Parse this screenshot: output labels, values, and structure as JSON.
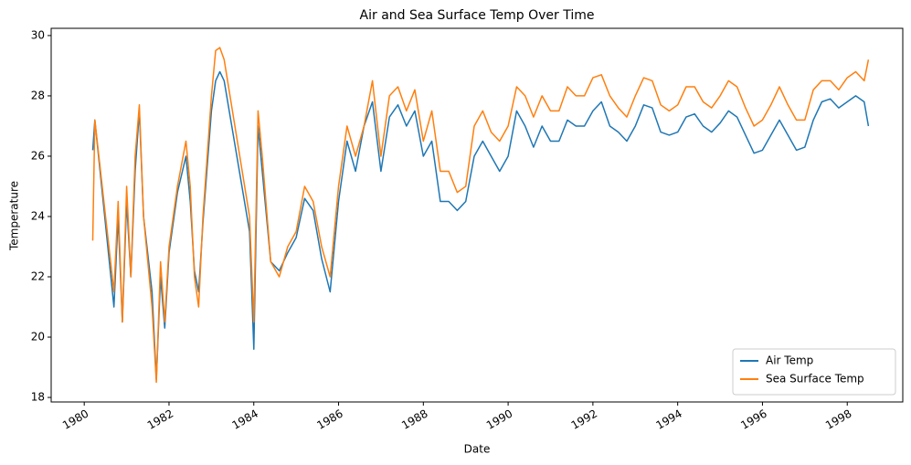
{
  "chart_data": {
    "type": "line",
    "title": "Air and Sea Surface Temp Over Time",
    "x_label": "Date",
    "y_label": "Temperature",
    "x": [
      1980.2,
      1980.25,
      1980.7,
      1980.8,
      1980.9,
      1981.0,
      1981.1,
      1981.2,
      1981.3,
      1981.4,
      1981.6,
      1981.7,
      1981.8,
      1981.9,
      1982.0,
      1982.2,
      1982.4,
      1982.5,
      1982.6,
      1982.7,
      1982.8,
      1983.0,
      1983.1,
      1983.2,
      1983.3,
      1983.9,
      1984.0,
      1984.1,
      1984.2,
      1984.4,
      1984.6,
      1984.8,
      1985.0,
      1985.2,
      1985.4,
      1985.6,
      1985.8,
      1985.9,
      1986.0,
      1986.2,
      1986.4,
      1986.6,
      1986.8,
      1987.0,
      1987.2,
      1987.4,
      1987.6,
      1987.8,
      1988.0,
      1988.2,
      1988.4,
      1988.6,
      1988.8,
      1989.0,
      1989.2,
      1989.4,
      1989.6,
      1989.8,
      1990.0,
      1990.2,
      1990.4,
      1990.6,
      1990.8,
      1991.0,
      1991.2,
      1991.4,
      1991.6,
      1991.8,
      1992.0,
      1992.2,
      1992.4,
      1992.6,
      1992.8,
      1993.0,
      1993.2,
      1993.4,
      1993.6,
      1993.8,
      1994.0,
      1994.2,
      1994.4,
      1994.6,
      1994.8,
      1995.0,
      1995.2,
      1995.4,
      1995.6,
      1995.8,
      1996.0,
      1996.2,
      1996.4,
      1996.6,
      1996.8,
      1997.0,
      1997.2,
      1997.4,
      1997.6,
      1997.8,
      1998.0,
      1998.2,
      1998.4,
      1998.5
    ],
    "series": [
      {
        "name": "Air Temp",
        "color": "#1f77b4",
        "values": [
          26.2,
          27.2,
          21,
          24,
          20.5,
          24.5,
          22,
          25.5,
          27.5,
          24,
          21.5,
          18.6,
          22,
          20.3,
          22.8,
          24.8,
          26,
          24.5,
          22.2,
          21.5,
          23.8,
          27.5,
          28.5,
          28.8,
          28.5,
          23.5,
          19.6,
          27,
          25.5,
          22.5,
          22.2,
          22.8,
          23.3,
          24.6,
          24.2,
          22.6,
          21.5,
          23,
          24.5,
          26.5,
          25.5,
          27,
          27.8,
          25.5,
          27.3,
          27.7,
          27,
          27.5,
          26,
          26.5,
          24.5,
          24.5,
          24.2,
          24.5,
          26,
          26.5,
          26,
          25.5,
          26,
          27.5,
          27,
          26.3,
          27,
          26.5,
          26.5,
          27.2,
          27,
          27,
          27.5,
          27.8,
          27,
          26.8,
          26.5,
          27,
          27.7,
          27.6,
          26.8,
          26.7,
          26.8,
          27.3,
          27.4,
          27,
          26.8,
          27.1,
          27.5,
          27.3,
          26.7,
          26.1,
          26.2,
          26.7,
          27.2,
          26.7,
          26.2,
          26.3,
          27.2,
          27.8,
          27.9,
          27.6,
          27.8,
          28,
          27.8,
          27.0
        ]
      },
      {
        "name": "Sea Surface Temp",
        "color": "#ff7f0e",
        "values": [
          23.2,
          27.2,
          21.5,
          24.5,
          20.5,
          25,
          22,
          26,
          27.7,
          24,
          21,
          18.5,
          22.5,
          20.5,
          23,
          25,
          26.5,
          25,
          22,
          21,
          24,
          28,
          29.5,
          29.6,
          29.2,
          24,
          20.5,
          27.5,
          26,
          22.5,
          22,
          23,
          23.5,
          25,
          24.5,
          23,
          22,
          23.5,
          25,
          27,
          26,
          27,
          28.5,
          26,
          28,
          28.3,
          27.5,
          28.2,
          26.5,
          27.5,
          25.5,
          25.5,
          24.8,
          25,
          27,
          27.5,
          26.8,
          26.5,
          27,
          28.3,
          28,
          27.3,
          28,
          27.5,
          27.5,
          28.3,
          28,
          28,
          28.6,
          28.7,
          28,
          27.6,
          27.3,
          28,
          28.6,
          28.5,
          27.7,
          27.5,
          27.7,
          28.3,
          28.3,
          27.8,
          27.6,
          28,
          28.5,
          28.3,
          27.6,
          27.0,
          27.2,
          27.7,
          28.3,
          27.7,
          27.2,
          27.2,
          28.2,
          28.5,
          28.5,
          28.2,
          28.6,
          28.8,
          28.5,
          29.2
        ]
      }
    ],
    "xlim": [
      1979.22,
      1999.31
    ],
    "ylim": [
      17.85,
      30.24
    ],
    "xticks": [
      1980,
      1982,
      1984,
      1986,
      1988,
      1990,
      1992,
      1994,
      1996,
      1998
    ],
    "yticks": [
      18,
      20,
      22,
      24,
      26,
      28,
      30
    ],
    "legend": "lower right"
  }
}
